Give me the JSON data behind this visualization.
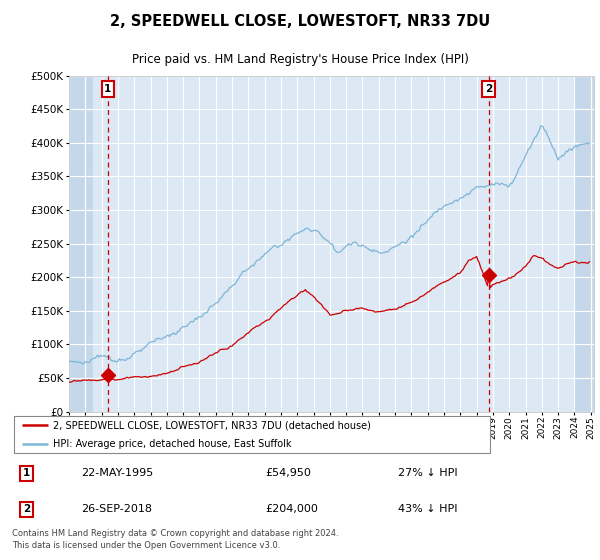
{
  "title": "2, SPEEDWELL CLOSE, LOWESTOFT, NR33 7DU",
  "subtitle": "Price paid vs. HM Land Registry's House Price Index (HPI)",
  "legend_red": "2, SPEEDWELL CLOSE, LOWESTOFT, NR33 7DU (detached house)",
  "legend_blue": "HPI: Average price, detached house, East Suffolk",
  "sale1_date": "22-MAY-1995",
  "sale1_price": 54950,
  "sale1_label": "27% ↓ HPI",
  "sale2_date": "26-SEP-2018",
  "sale2_price": 204000,
  "sale2_label": "43% ↓ HPI",
  "footnote": "Contains HM Land Registry data © Crown copyright and database right 2024.\nThis data is licensed under the Open Government Licence v3.0.",
  "ylim": [
    0,
    500000
  ],
  "yticks": [
    0,
    50000,
    100000,
    150000,
    200000,
    250000,
    300000,
    350000,
    400000,
    450000,
    500000
  ],
  "bg_color": "#dce9f5",
  "hatch_color": "#c5d8eb",
  "grid_color": "#ffffff",
  "red_color": "#cc0000",
  "blue_color": "#7eb5d6",
  "sale1_x_year": 1995.38,
  "sale2_x_year": 2018.74,
  "xmin": 1993.0,
  "xmax": 2025.2
}
